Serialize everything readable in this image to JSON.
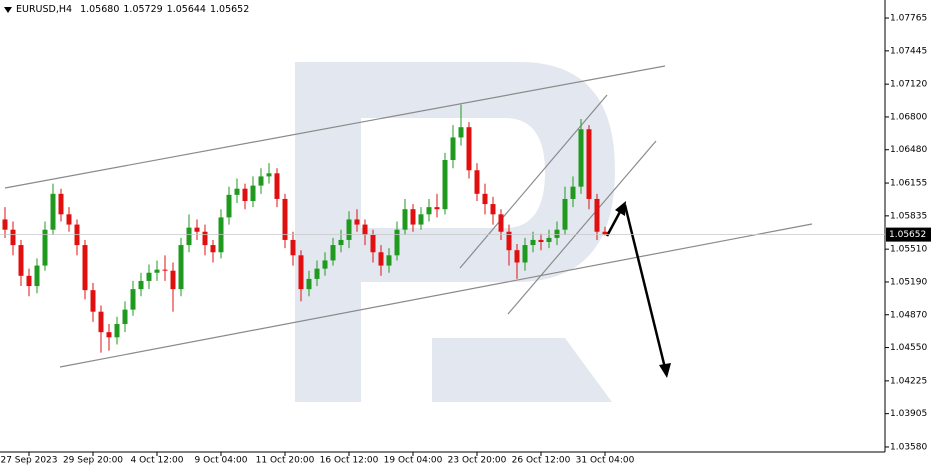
{
  "chart_data": {
    "type": "candlestick",
    "title": "EURUSD,H4",
    "last_bar_labels": [
      "1.05680",
      "1.05729",
      "1.05644",
      "1.05652"
    ],
    "up_color": "#1f9a1f",
    "down_color": "#e01010",
    "categories": [
      null,
      null,
      null,
      "27 Sep 2023",
      null,
      null,
      null,
      null,
      null,
      null,
      null,
      "29 Sep 20:00",
      null,
      null,
      null,
      null,
      null,
      null,
      null,
      "4 Oct 12:00",
      null,
      null,
      null,
      null,
      null,
      null,
      null,
      "9 Oct 04:00",
      null,
      null,
      null,
      null,
      null,
      null,
      null,
      "11 Oct 20:00",
      null,
      null,
      null,
      null,
      null,
      null,
      null,
      "16 Oct 12:00",
      null,
      null,
      null,
      null,
      null,
      null,
      null,
      "19 Oct 04:00",
      null,
      null,
      null,
      null,
      null,
      null,
      null,
      "23 Oct 20:00",
      null,
      null,
      null,
      null,
      null,
      null,
      null,
      "26 Oct 12:00",
      null,
      null,
      null,
      null,
      null,
      null,
      null,
      "31 Oct 04:00"
    ],
    "open": [
      1.058,
      1.057,
      1.0555,
      1.0525,
      1.0515,
      1.0535,
      1.057,
      1.0605,
      1.0585,
      1.0575,
      1.0555,
      1.0511,
      1.049,
      1.047,
      1.0465,
      1.0478,
      1.0492,
      1.0512,
      1.052,
      1.0528,
      1.0531,
      1.053,
      1.0512,
      1.0555,
      1.0572,
      1.0568,
      1.0555,
      1.0548,
      1.0582,
      1.0604,
      1.061,
      1.0598,
      1.0613,
      1.0622,
      1.0625,
      1.06,
      1.056,
      1.0545,
      1.0512,
      1.0522,
      1.0532,
      1.054,
      1.0555,
      1.056,
      1.058,
      1.0575,
      1.0565,
      1.0548,
      1.0535,
      1.0545,
      1.057,
      1.059,
      1.0575,
      1.0585,
      1.0592,
      1.059,
      1.0638,
      1.066,
      1.067,
      1.0628,
      1.0605,
      1.0595,
      1.0585,
      1.0568,
      1.055,
      1.0538,
      1.0555,
      1.056,
      1.0558,
      1.0562,
      1.057,
      1.06,
      1.0612,
      1.0668,
      1.06,
      1.0568
    ],
    "high": [
      1.0592,
      1.0578,
      1.056,
      1.0532,
      1.0542,
      1.0578,
      1.0615,
      1.061,
      1.0592,
      1.058,
      1.056,
      1.0518,
      1.0496,
      1.0478,
      1.0485,
      1.05,
      1.052,
      1.0528,
      1.0536,
      1.054,
      1.0545,
      1.0538,
      1.0562,
      1.0585,
      1.058,
      1.0575,
      1.056,
      1.059,
      1.0612,
      1.062,
      1.0615,
      1.0622,
      1.063,
      1.0635,
      1.063,
      1.0605,
      1.0568,
      1.055,
      1.053,
      1.054,
      1.0548,
      1.0562,
      1.057,
      1.0588,
      1.059,
      1.058,
      1.057,
      1.0555,
      1.0552,
      1.0578,
      1.06,
      1.0595,
      1.0592,
      1.06,
      1.0605,
      1.0645,
      1.0672,
      1.0692,
      1.0675,
      1.0635,
      1.0615,
      1.0602,
      1.059,
      1.0575,
      1.0556,
      1.0562,
      1.0568,
      1.0566,
      1.057,
      1.0578,
      1.0612,
      1.0622,
      1.0678,
      1.0672,
      1.0605,
      1.05729
    ],
    "low": [
      1.0562,
      1.0545,
      1.0515,
      1.0505,
      1.0508,
      1.053,
      1.0565,
      1.0578,
      1.0568,
      1.0545,
      1.0502,
      1.048,
      1.045,
      1.0452,
      1.0458,
      1.047,
      1.0486,
      1.0505,
      1.0512,
      1.052,
      1.052,
      1.049,
      1.0505,
      1.0548,
      1.056,
      1.0545,
      1.0538,
      1.0542,
      1.0575,
      1.0596,
      1.059,
      1.0592,
      1.0605,
      1.0615,
      1.0592,
      1.0552,
      1.0535,
      1.05,
      1.0505,
      1.0515,
      1.0525,
      1.0535,
      1.0548,
      1.0552,
      1.0568,
      1.0555,
      1.0538,
      1.0525,
      1.0528,
      1.054,
      1.0565,
      1.0568,
      1.057,
      1.0578,
      1.0582,
      1.0585,
      1.063,
      1.0652,
      1.062,
      1.0598,
      1.0585,
      1.0575,
      1.056,
      1.0535,
      1.0522,
      1.053,
      1.0548,
      1.055,
      1.0552,
      1.0555,
      1.0565,
      1.0592,
      1.0605,
      1.059,
      1.056,
      1.05644
    ],
    "close": [
      1.057,
      1.0555,
      1.0525,
      1.0515,
      1.0535,
      1.057,
      1.0605,
      1.0585,
      1.0575,
      1.0555,
      1.0511,
      1.049,
      1.047,
      1.0465,
      1.0478,
      1.0492,
      1.0512,
      1.052,
      1.0528,
      1.0531,
      1.053,
      1.0512,
      1.0555,
      1.0572,
      1.0568,
      1.0555,
      1.0548,
      1.0582,
      1.0604,
      1.061,
      1.0598,
      1.0613,
      1.0622,
      1.0625,
      1.06,
      1.056,
      1.0545,
      1.0512,
      1.0522,
      1.0532,
      1.054,
      1.0555,
      1.056,
      1.058,
      1.0575,
      1.0565,
      1.0548,
      1.0535,
      1.0545,
      1.057,
      1.059,
      1.0575,
      1.0585,
      1.0592,
      1.059,
      1.0638,
      1.066,
      1.067,
      1.0628,
      1.0605,
      1.0595,
      1.0585,
      1.0568,
      1.055,
      1.0538,
      1.0555,
      1.056,
      1.0558,
      1.0562,
      1.057,
      1.06,
      1.0612,
      1.0668,
      1.06,
      1.0568,
      1.05652
    ],
    "ylim": [
      1.03531,
      1.07941
    ],
    "yticks": [
      1.07765,
      1.07445,
      {
        "value": 1.0712,
        "label": "1.07120"
      },
      {
        "value": 1.068,
        "label": "1.06800"
      },
      {
        "value": 1.0648,
        "label": "1.06480"
      },
      1.06155,
      1.05835,
      {
        "value": 1.0551,
        "label": "1.05510"
      },
      {
        "value": 1.0519,
        "label": "1.05190"
      },
      {
        "value": 1.0487,
        "label": "1.04870"
      },
      {
        "value": 1.0455,
        "label": "1.04550"
      },
      1.04225,
      1.03905,
      {
        "value": 1.0358,
        "label": "1.03580"
      }
    ]
  }
}
